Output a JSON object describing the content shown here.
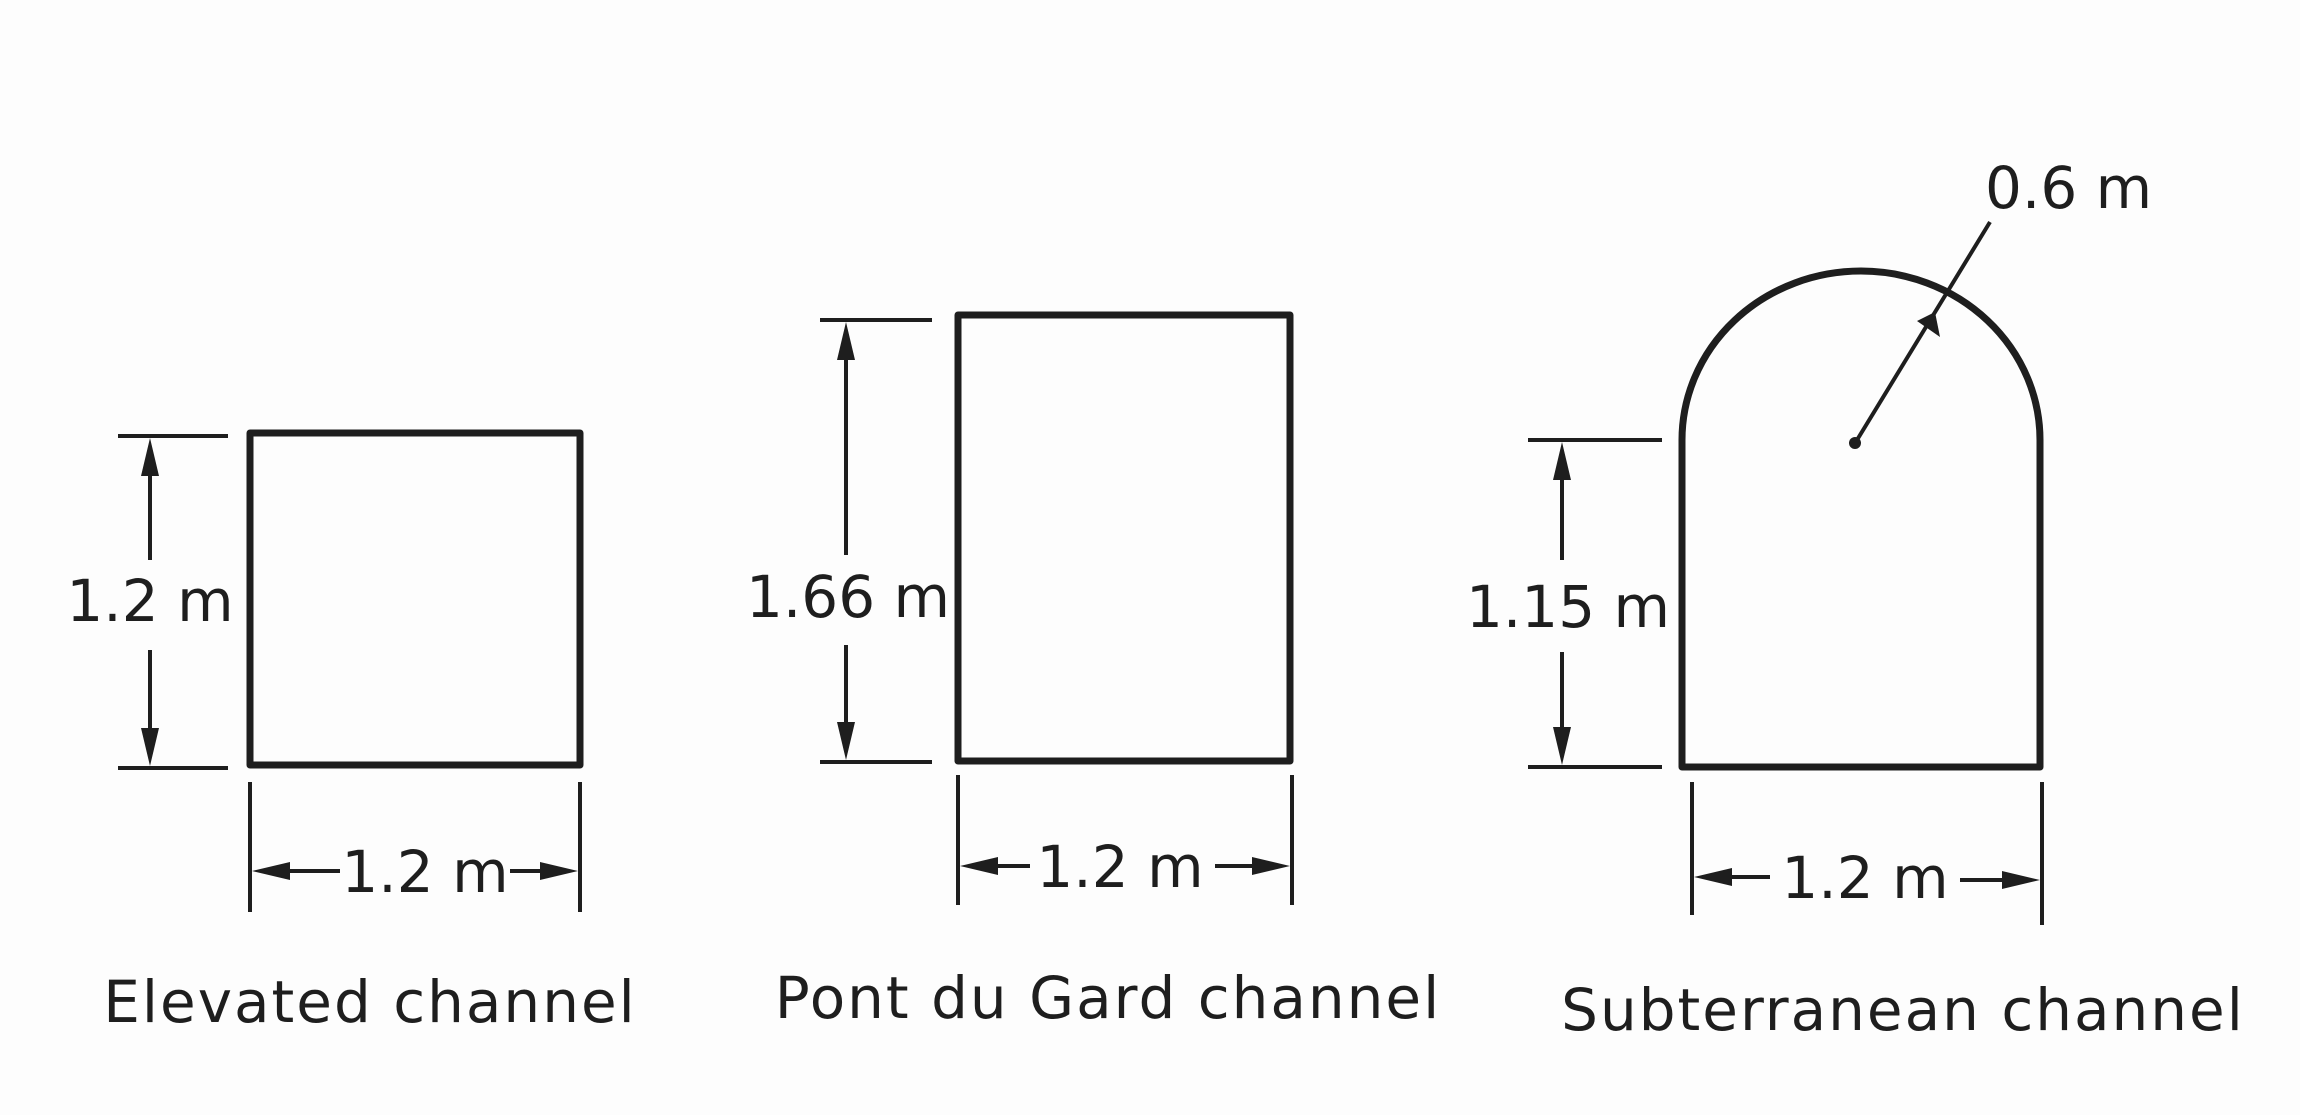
{
  "diagram": {
    "channels": [
      {
        "caption": "Elevated channel",
        "height_label": "1.2 m",
        "width_label": "1.2 m"
      },
      {
        "caption": "Pont du Gard channel",
        "height_label": "1.66 m",
        "width_label": "1.2 m"
      },
      {
        "caption": "Subterranean channel",
        "height_label": "1.15 m",
        "width_label": "1.2 m",
        "radius_label": "0.6 m"
      }
    ]
  }
}
